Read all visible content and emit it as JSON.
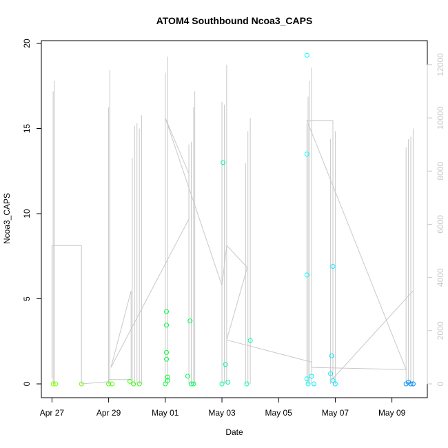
{
  "chart_data": {
    "type": "scatter",
    "title": "ATOM4 Southbound Ncoa3_CAPS",
    "xlabel": "Date",
    "ylabel": "Ncoa3_CAPS",
    "xlim": [
      "2015-04-26 15:00",
      "2015-05-10 06:00"
    ],
    "ylim": [
      0,
      20
    ],
    "y_ticks": [
      0,
      5,
      10,
      15,
      20
    ],
    "x_ticks": [
      {
        "date": "2015-04-27",
        "label": "Apr 27"
      },
      {
        "date": "2015-04-29",
        "label": "Apr 29"
      },
      {
        "date": "2015-05-01",
        "label": "May 01"
      },
      {
        "date": "2015-05-03",
        "label": "May 03"
      },
      {
        "date": "2015-05-05",
        "label": "May 05"
      },
      {
        "date": "2015-05-07",
        "label": "May 07"
      },
      {
        "date": "2015-05-09",
        "label": "May 09"
      }
    ],
    "y2lim": [
      0,
      12800
    ],
    "y2_ticks": [
      0,
      2000,
      4000,
      6000,
      8000,
      10000,
      12000
    ],
    "grid": false,
    "colors": {
      "secondary_series": "#c8c8c8",
      "axis": "#000000",
      "secondary_axis": "#c8c8c8"
    },
    "series": [
      {
        "role": "points colored by time (green to blue)",
        "axis": "left",
        "points": [
          {
            "x": "2015-04-27 01:00",
            "y": 0,
            "color": "#7fff00"
          },
          {
            "x": "2015-04-27 03:00",
            "y": 0,
            "color": "#7fff00"
          },
          {
            "x": "2015-04-28 01:00",
            "y": 0,
            "color": "#6cff00"
          },
          {
            "x": "2015-04-29 00:00",
            "y": 0,
            "color": "#4cff00"
          },
          {
            "x": "2015-04-29 03:00",
            "y": 0,
            "color": "#4cff00"
          },
          {
            "x": "2015-04-29 18:00",
            "y": 0.15,
            "color": "#33ff00"
          },
          {
            "x": "2015-04-29 21:00",
            "y": 0,
            "color": "#33ff00"
          },
          {
            "x": "2015-04-30 02:00",
            "y": 0,
            "color": "#2bff00"
          },
          {
            "x": "2015-05-01 00:00",
            "y": 0,
            "color": "#00ff33"
          },
          {
            "x": "2015-05-01 01:00",
            "y": 4.25,
            "color": "#00ff33"
          },
          {
            "x": "2015-05-01 01:00",
            "y": 3.45,
            "color": "#00ff33"
          },
          {
            "x": "2015-05-01 01:00",
            "y": 1.85,
            "color": "#00ff33"
          },
          {
            "x": "2015-05-01 01:00",
            "y": 1.45,
            "color": "#00ff33"
          },
          {
            "x": "2015-05-01 02:00",
            "y": 0.4,
            "color": "#00ff33"
          },
          {
            "x": "2015-05-01 02:00",
            "y": 0.2,
            "color": "#00ff33"
          },
          {
            "x": "2015-05-01 19:00",
            "y": 0.45,
            "color": "#00ff55"
          },
          {
            "x": "2015-05-01 21:00",
            "y": 3.7,
            "color": "#00ff55"
          },
          {
            "x": "2015-05-01 22:00",
            "y": 0,
            "color": "#00ff55"
          },
          {
            "x": "2015-05-02 00:00",
            "y": 0,
            "color": "#00ff55"
          },
          {
            "x": "2015-05-03 00:00",
            "y": 0,
            "color": "#00ff88"
          },
          {
            "x": "2015-05-03 01:00",
            "y": 13.0,
            "color": "#00ff99"
          },
          {
            "x": "2015-05-03 03:00",
            "y": 1.15,
            "color": "#00ff99"
          },
          {
            "x": "2015-05-03 05:00",
            "y": 0.1,
            "color": "#00ff99"
          },
          {
            "x": "2015-05-03 21:00",
            "y": 0,
            "color": "#00ffaa"
          },
          {
            "x": "2015-05-04 00:00",
            "y": 2.55,
            "color": "#00ffaa"
          },
          {
            "x": "2015-05-06 00:00",
            "y": 19.3,
            "color": "#00ffff"
          },
          {
            "x": "2015-05-06 00:00",
            "y": 13.5,
            "color": "#00ffff"
          },
          {
            "x": "2015-05-06 00:00",
            "y": 6.4,
            "color": "#00ffff"
          },
          {
            "x": "2015-05-06 00:00",
            "y": 0.3,
            "color": "#00ffff"
          },
          {
            "x": "2015-05-06 01:00",
            "y": 0,
            "color": "#00ffff"
          },
          {
            "x": "2015-05-06 04:00",
            "y": 0.45,
            "color": "#00f0ff"
          },
          {
            "x": "2015-05-06 06:00",
            "y": 0,
            "color": "#00f0ff"
          },
          {
            "x": "2015-05-06 20:00",
            "y": 0.6,
            "color": "#00e6ff"
          },
          {
            "x": "2015-05-06 21:00",
            "y": 1.65,
            "color": "#00e6ff"
          },
          {
            "x": "2015-05-06 22:00",
            "y": 6.9,
            "color": "#00e6ff"
          },
          {
            "x": "2015-05-06 22:00",
            "y": 0.2,
            "color": "#00e6ff"
          },
          {
            "x": "2015-05-07 00:00",
            "y": 0,
            "color": "#00e6ff"
          },
          {
            "x": "2015-05-09 12:00",
            "y": 0,
            "color": "#0099ff"
          },
          {
            "x": "2015-05-09 14:00",
            "y": 0.1,
            "color": "#0095ff"
          },
          {
            "x": "2015-05-09 16:00",
            "y": 0,
            "color": "#008cff"
          },
          {
            "x": "2015-05-09 18:00",
            "y": 0,
            "color": "#0088ff"
          }
        ]
      },
      {
        "role": "grey line (right axis)",
        "axis": "right",
        "spikes": [
          {
            "x": "2015-04-27 01:00",
            "y": 11000
          },
          {
            "x": "2015-04-27 02:00",
            "y": 11400
          },
          {
            "x": "2015-04-29 00:00",
            "y": 10400
          },
          {
            "x": "2015-04-29 01:00",
            "y": 11800
          },
          {
            "x": "2015-04-29 20:00",
            "y": 8500
          },
          {
            "x": "2015-04-29 22:00",
            "y": 9700
          },
          {
            "x": "2015-04-30 00:00",
            "y": 9800
          },
          {
            "x": "2015-04-30 02:00",
            "y": 9600
          },
          {
            "x": "2015-04-30 04:00",
            "y": 10100
          },
          {
            "x": "2015-05-01 00:00",
            "y": 11700
          },
          {
            "x": "2015-05-01 02:00",
            "y": 12300
          },
          {
            "x": "2015-05-01 20:00",
            "y": 9000
          },
          {
            "x": "2015-05-01 22:00",
            "y": 9100
          },
          {
            "x": "2015-05-02 00:00",
            "y": 10400
          },
          {
            "x": "2015-05-02 01:00",
            "y": 11000
          },
          {
            "x": "2015-05-03 00:00",
            "y": 10600
          },
          {
            "x": "2015-05-03 02:00",
            "y": 10500
          },
          {
            "x": "2015-05-03 04:00",
            "y": 12000
          },
          {
            "x": "2015-05-03 20:00",
            "y": 8300
          },
          {
            "x": "2015-05-03 22:00",
            "y": 9500
          },
          {
            "x": "2015-05-04 00:00",
            "y": 10000
          },
          {
            "x": "2015-05-06 00:00",
            "y": 9800
          },
          {
            "x": "2015-05-06 01:00",
            "y": 10800
          },
          {
            "x": "2015-05-06 02:00",
            "y": 11400
          },
          {
            "x": "2015-05-06 04:00",
            "y": 11900
          },
          {
            "x": "2015-05-06 20:00",
            "y": 9200
          },
          {
            "x": "2015-05-06 22:00",
            "y": 9400
          },
          {
            "x": "2015-05-07 00:00",
            "y": 9500
          },
          {
            "x": "2015-05-09 12:00",
            "y": 8900
          },
          {
            "x": "2015-05-09 14:00",
            "y": 9200
          },
          {
            "x": "2015-05-09 16:00",
            "y": 9300
          },
          {
            "x": "2015-05-09 18:00",
            "y": 9600
          }
        ],
        "connector": [
          {
            "x": "2015-04-27 00:00",
            "y": 220
          },
          {
            "x": "2015-04-27 00:00",
            "y": 5200
          },
          {
            "x": "2015-04-28 01:00",
            "y": 5200
          },
          {
            "x": "2015-04-28 01:00",
            "y": 0
          },
          {
            "x": "2015-04-29 00:00",
            "y": 80
          },
          {
            "x": "2015-04-29 00:00",
            "y": 160
          },
          {
            "x": "2015-04-29 19:00",
            "y": 160
          },
          {
            "x": "2015-04-29 19:00",
            "y": 3500
          },
          {
            "x": "2015-04-29 02:00",
            "y": 620
          },
          {
            "x": "2015-05-01 20:00",
            "y": 6200
          },
          {
            "x": "2015-05-01 20:00",
            "y": 7900
          },
          {
            "x": "2015-05-01 00:00",
            "y": 10000
          },
          {
            "x": "2015-05-03 00:00",
            "y": 3700
          },
          {
            "x": "2015-05-03 04:00",
            "y": 5200
          },
          {
            "x": "2015-05-03 21:00",
            "y": 4400
          },
          {
            "x": "2015-05-03 21:00",
            "y": 4300
          },
          {
            "x": "2015-05-03 04:00",
            "y": 1650
          },
          {
            "x": "2015-05-06 04:00",
            "y": 820
          },
          {
            "x": "2015-05-06 04:00",
            "y": 620
          },
          {
            "x": "2015-05-09 12:00",
            "y": 540
          },
          {
            "x": "2015-05-06 00:00",
            "y": 9900
          },
          {
            "x": "2015-05-06 22:00",
            "y": 9900
          },
          {
            "x": "2015-05-06 22:00",
            "y": 200
          },
          {
            "x": "2015-05-09 18:00",
            "y": 3500
          }
        ]
      }
    ]
  }
}
